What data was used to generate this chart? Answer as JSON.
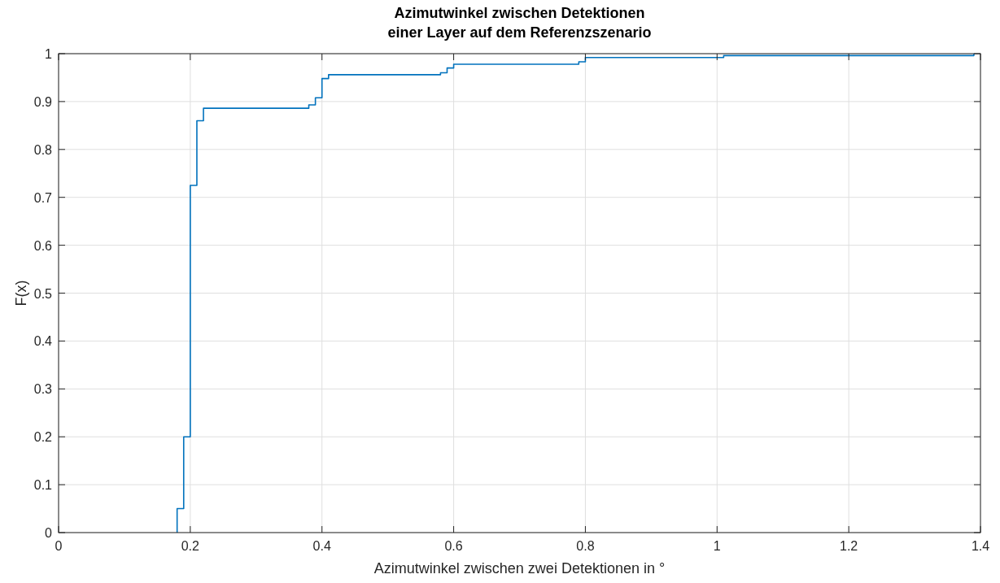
{
  "chart_data": {
    "type": "step",
    "title": "Azimutwinkel zwischen Detektionen\neiner Layer auf dem Referenzszenario",
    "xlabel": "Azimutwinkel zwischen zwei Detektionen in °",
    "ylabel": "F(x)",
    "x": [
      0.18,
      0.18,
      0.19,
      0.2,
      0.21,
      0.22,
      0.38,
      0.39,
      0.4,
      0.41,
      0.58,
      0.59,
      0.6,
      0.79,
      0.8,
      1.01,
      1.39
    ],
    "series": [
      {
        "color": "#0072bd",
        "values": [
          0,
          0.05,
          0.2,
          0.725,
          0.86,
          0.886,
          0.893,
          0.908,
          0.948,
          0.956,
          0.96,
          0.97,
          0.978,
          0.983,
          0.992,
          0.996,
          1
        ]
      }
    ],
    "xlim": [
      0,
      1.4
    ],
    "ylim": [
      0,
      1
    ],
    "xticks": [
      0,
      0.2,
      0.4,
      0.6,
      0.8,
      1,
      1.2,
      1.4
    ],
    "yticks": [
      0,
      0.1,
      0.2,
      0.3,
      0.4,
      0.5,
      0.6,
      0.7,
      0.8,
      0.9,
      1
    ],
    "grid": true
  }
}
